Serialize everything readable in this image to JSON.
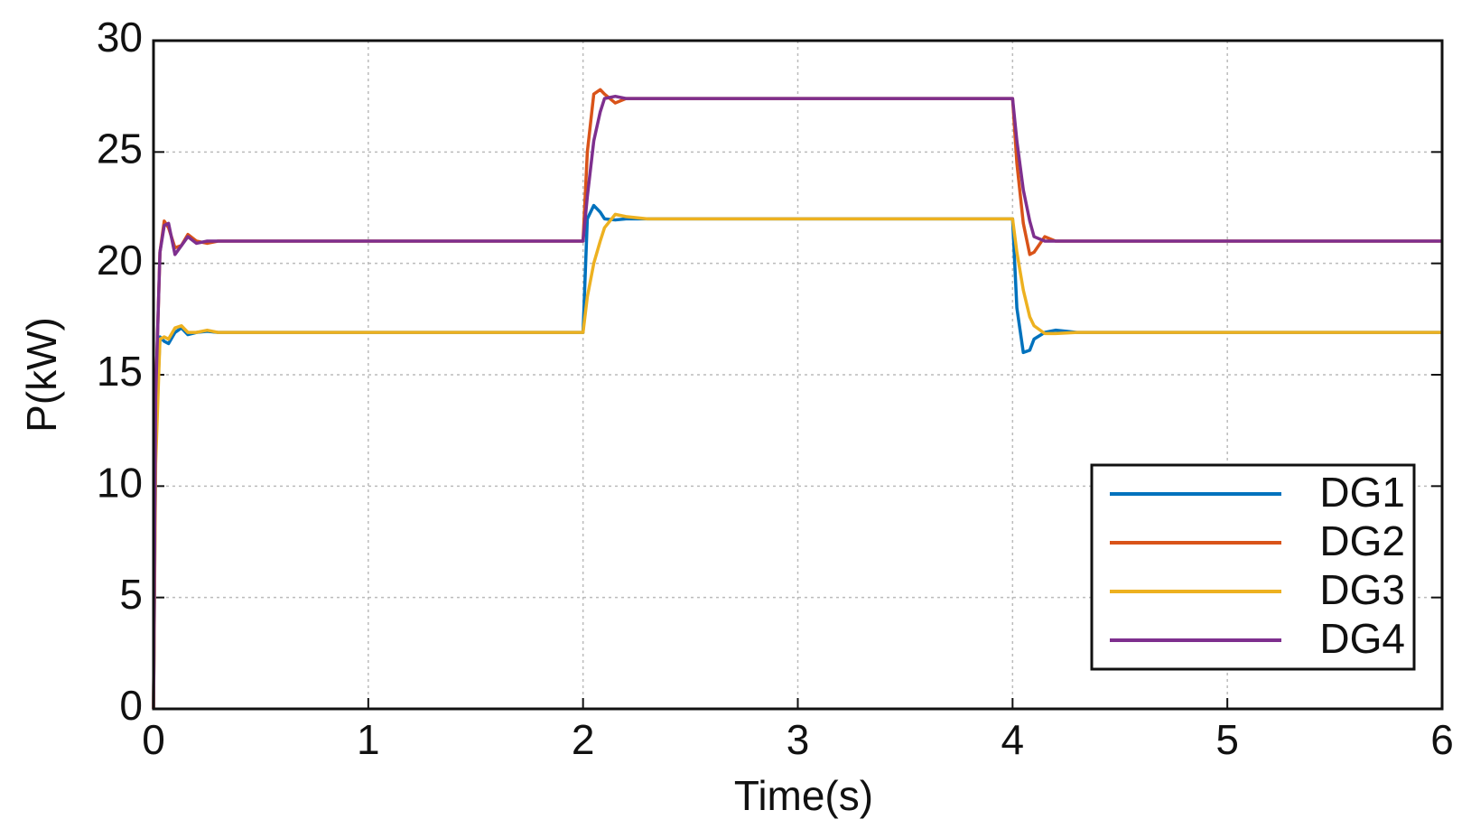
{
  "chart_data": {
    "type": "line",
    "xlabel": "Time(s)",
    "ylabel": "P(kW)",
    "x": [
      0,
      0.01,
      0.03,
      0.05,
      0.07,
      0.1,
      0.13,
      0.16,
      0.2,
      0.25,
      0.3,
      0.5,
      1,
      1.5,
      1.99,
      2,
      2.02,
      2.05,
      2.08,
      2.1,
      2.15,
      2.2,
      2.3,
      2.5,
      3,
      3.5,
      3.99,
      4,
      4.02,
      4.05,
      4.08,
      4.1,
      4.15,
      4.2,
      4.3,
      4.5,
      5,
      6
    ],
    "series": [
      {
        "name": "DG1",
        "color": "#0072bd",
        "values": [
          0,
          12,
          16.7,
          16.5,
          16.4,
          16.9,
          17.1,
          16.8,
          16.9,
          16.95,
          16.9,
          16.9,
          16.9,
          16.9,
          16.9,
          16.9,
          22.0,
          22.6,
          22.3,
          22.0,
          21.95,
          22,
          22,
          22,
          22,
          22,
          22,
          22,
          18,
          16.0,
          16.1,
          16.6,
          16.9,
          17.0,
          16.9,
          16.9,
          16.9,
          16.9
        ]
      },
      {
        "name": "DG2",
        "color": "#d95319",
        "values": [
          0,
          14,
          20.5,
          21.9,
          21.6,
          20.7,
          20.8,
          21.3,
          21.0,
          20.9,
          21.0,
          21,
          21,
          21,
          21,
          21,
          25,
          27.6,
          27.8,
          27.6,
          27.2,
          27.4,
          27.4,
          27.4,
          27.4,
          27.4,
          27.4,
          27.4,
          24.5,
          21.8,
          20.4,
          20.5,
          21.2,
          21.0,
          21.0,
          21,
          21,
          21
        ]
      },
      {
        "name": "DG3",
        "color": "#edb120",
        "values": [
          0,
          11,
          16.6,
          16.7,
          16.6,
          17.1,
          17.2,
          16.9,
          16.9,
          17.0,
          16.9,
          16.9,
          16.9,
          16.9,
          16.9,
          16.9,
          18.5,
          20.0,
          21.0,
          21.6,
          22.2,
          22.1,
          22.0,
          22,
          22,
          22,
          22,
          22,
          20.5,
          18.8,
          17.6,
          17.2,
          16.85,
          16.85,
          16.9,
          16.9,
          16.9,
          16.9
        ]
      },
      {
        "name": "DG4",
        "color": "#7e2f8e",
        "values": [
          0,
          14,
          20.5,
          21.7,
          21.8,
          20.4,
          20.8,
          21.2,
          20.9,
          21.0,
          21.0,
          21,
          21,
          21,
          21,
          21,
          23,
          25.5,
          26.8,
          27.4,
          27.5,
          27.4,
          27.4,
          27.4,
          27.4,
          27.4,
          27.4,
          27.4,
          25.5,
          23.3,
          21.9,
          21.2,
          21.0,
          21.0,
          21.0,
          21,
          21,
          21
        ]
      }
    ],
    "xlim": [
      0,
      6
    ],
    "xticks": [
      0,
      1,
      2,
      3,
      4,
      5,
      6
    ],
    "ylim": [
      0,
      30
    ],
    "yticks": [
      0,
      5,
      10,
      15,
      20,
      25,
      30
    ],
    "grid": true,
    "legend": "lower right"
  }
}
